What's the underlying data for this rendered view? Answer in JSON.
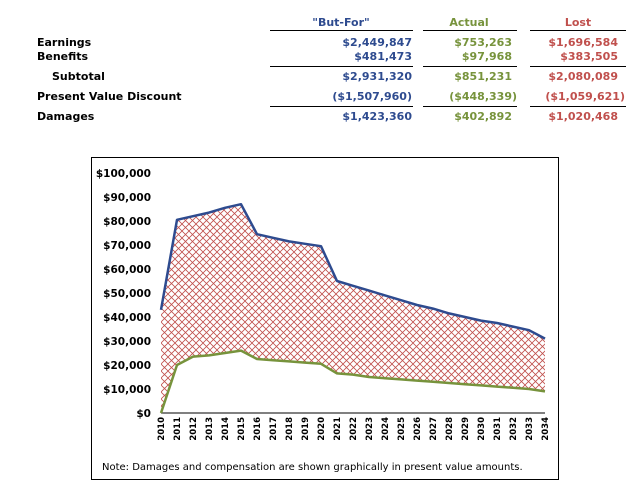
{
  "table": {
    "headers": {
      "but_for": "\"But-For\"",
      "actual": "Actual",
      "lost": "Lost"
    },
    "rows": [
      {
        "label": "Earnings",
        "but_for": "$2,449,847",
        "actual": "$753,263",
        "lost": "$1,696,584"
      },
      {
        "label": "Benefits",
        "but_for": "$481,473",
        "actual": "$97,968",
        "lost": "$383,505"
      },
      {
        "label": "Subtotal",
        "but_for": "$2,931,320",
        "actual": "$851,231",
        "lost": "$2,080,089"
      },
      {
        "label": "Present Value Discount",
        "but_for": "($1,507,960)",
        "actual": "($448,339)",
        "lost": "($1,059,621)"
      },
      {
        "label": "Damages",
        "but_for": "$1,423,360",
        "actual": "$402,892",
        "lost": "$1,020,468"
      }
    ]
  },
  "colors": {
    "but_for": "#2e4b8f",
    "actual": "#77933c",
    "lost": "#c0504d"
  },
  "chart_data": {
    "type": "area",
    "x": [
      2010,
      2011,
      2012,
      2013,
      2014,
      2015,
      2016,
      2017,
      2018,
      2019,
      2020,
      2021,
      2022,
      2023,
      2024,
      2025,
      2026,
      2027,
      2028,
      2029,
      2030,
      2031,
      2032,
      2033,
      2034
    ],
    "x_tick_labels": [
      "2010",
      "2011",
      "2012",
      "2013",
      "2014",
      "2015",
      "2016",
      "2017",
      "2018",
      "2019",
      "2020",
      "2021",
      "2022",
      "2023",
      "2024",
      "2025",
      "2026",
      "2027",
      "2028",
      "2029",
      "2030",
      "2031",
      "2032",
      "2033",
      "2034"
    ],
    "series": [
      {
        "key": "but_for",
        "values": [
          43000,
          80500,
          82000,
          83500,
          85500,
          87000,
          74500,
          73000,
          71500,
          70500,
          69500,
          55000,
          53000,
          51000,
          49000,
          47000,
          45000,
          43500,
          41500,
          40000,
          38500,
          37500,
          36000,
          34500,
          31000
        ]
      },
      {
        "key": "actual",
        "values": [
          0,
          20000,
          23500,
          24000,
          25000,
          26000,
          22500,
          22000,
          21500,
          21000,
          20500,
          16500,
          16000,
          15000,
          14500,
          14000,
          13500,
          13000,
          12500,
          12000,
          11500,
          11000,
          10500,
          10000,
          9000
        ]
      }
    ],
    "ylim": [
      0,
      100000
    ],
    "y_tick_labels": [
      "$0",
      "$10,000",
      "$20,000",
      "$30,000",
      "$40,000",
      "$50,000",
      "$60,000",
      "$70,000",
      "$80,000",
      "$90,000",
      "$100,000"
    ],
    "fill": "crosshatch between series",
    "grid": false,
    "note": "Note: Damages and compensation are shown graphically in present value  amounts."
  }
}
